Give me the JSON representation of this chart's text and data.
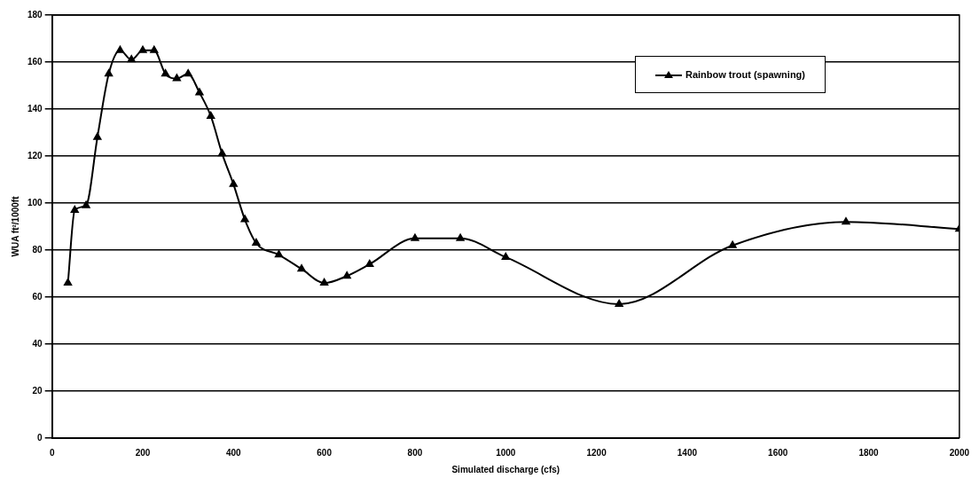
{
  "chart_data": {
    "type": "line",
    "xlabel": "Simulated discharge (cfs)",
    "ylabel": "WUA ft²/1000ft",
    "series": [
      {
        "name": "Rainbow trout (spawning)",
        "color": "#000000",
        "x": [
          35,
          50,
          75,
          100,
          125,
          150,
          175,
          200,
          225,
          250,
          275,
          300,
          325,
          350,
          375,
          400,
          425,
          450,
          500,
          550,
          600,
          650,
          700,
          800,
          900,
          1000,
          1250,
          1500,
          1750,
          2000
        ],
        "values": [
          66,
          97,
          99,
          128,
          155,
          165,
          161,
          165,
          165,
          155,
          153,
          155,
          147,
          137,
          121,
          108,
          93,
          83,
          78,
          72,
          66,
          69,
          74,
          85,
          85,
          77,
          57,
          82,
          92,
          89
        ]
      }
    ],
    "xlim": [
      0,
      2000
    ],
    "xticks": [
      0,
      200,
      400,
      600,
      800,
      1000,
      1200,
      1400,
      1600,
      1800,
      2000
    ],
    "ylim": [
      0,
      180
    ],
    "yticks": [
      0,
      20,
      40,
      60,
      80,
      100,
      120,
      140,
      160,
      180
    ],
    "grid": "y",
    "legend": "top right",
    "marker": "triangle",
    "line_style": "solid"
  }
}
